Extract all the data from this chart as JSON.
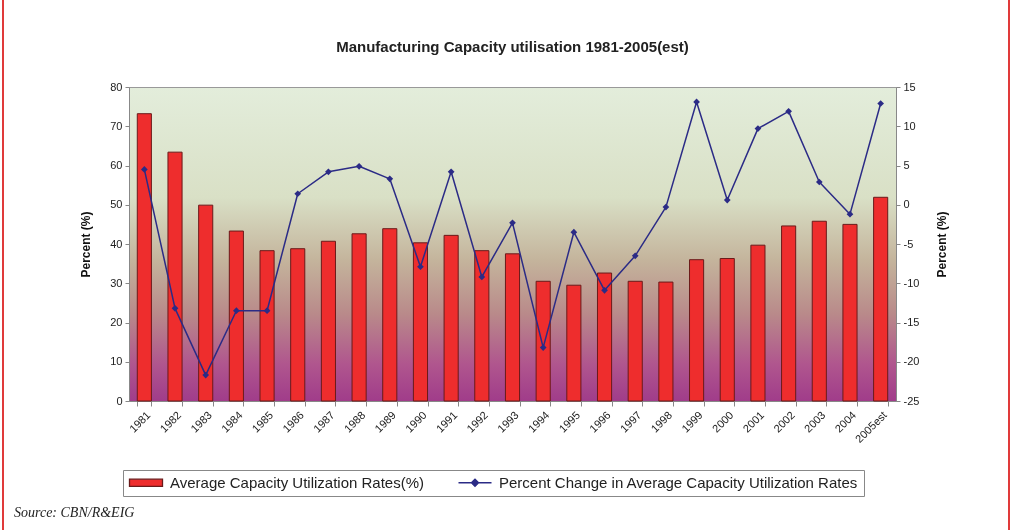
{
  "chart_data": {
    "type": "bar",
    "title": "Manufacturing Capacity utilisation 1981-2005(est)",
    "categories": [
      "1981",
      "1982",
      "1983",
      "1984",
      "1985",
      "1986",
      "1987",
      "1988",
      "1989",
      "1990",
      "1991",
      "1992",
      "1993",
      "1994",
      "1995",
      "1996",
      "1997",
      "1998",
      "1999",
      "2000",
      "2001",
      "2002",
      "2003",
      "2004",
      "2005est"
    ],
    "series": [
      {
        "name": "Average Capacity Utilization Rates(%)",
        "color": "#ee2d2d",
        "values": [
          73.2,
          63.4,
          49.9,
          43.3,
          38.3,
          38.8,
          40.7,
          42.6,
          43.9,
          40.3,
          42.2,
          38.3,
          37.5,
          30.5,
          29.5,
          32.6,
          30.5,
          30.3,
          36.0,
          36.3,
          39.7,
          44.6,
          45.8,
          45.0,
          51.9
        ]
      },
      {
        "name": "Percent Change in Average Capacity Utilization Rates",
        "type": "line",
        "axis": "y2",
        "color": "#2b2b86",
        "values": [
          4.5,
          -13.2,
          -21.7,
          -13.5,
          -13.5,
          1.4,
          4.2,
          4.9,
          3.3,
          -7.9,
          4.2,
          -9.2,
          -2.3,
          -18.2,
          -3.5,
          -10.9,
          -6.5,
          -0.3,
          13.1,
          0.6,
          9.7,
          11.9,
          2.9,
          -1.2,
          12.9
        ]
      }
    ],
    "ylabel": "Percent (%)",
    "y2label": "Percent (%)",
    "ylim": [
      0,
      80
    ],
    "yticks": [
      0,
      10,
      20,
      30,
      40,
      50,
      60,
      70,
      80
    ],
    "y2lim": [
      -25,
      15
    ],
    "y2ticks": [
      -25,
      -20,
      -15,
      -10,
      -5,
      0,
      5,
      10,
      15
    ],
    "grid": false,
    "legend": "bottom",
    "marker": "diamond",
    "line_style": "solid",
    "annotations": [
      "Source: CBN/R&EIG"
    ]
  }
}
